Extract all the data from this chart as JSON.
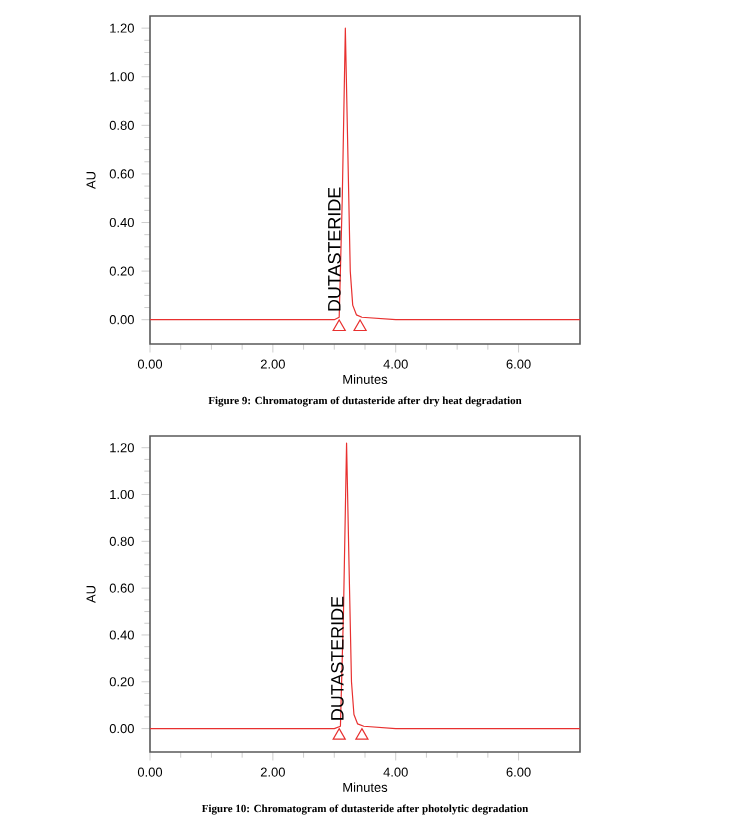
{
  "chart_data": [
    {
      "type": "line",
      "xlabel": "Minutes",
      "ylabel": "AU",
      "xlim": [
        0,
        7
      ],
      "ylim": [
        -0.1,
        1.25
      ],
      "xticks": [
        {
          "value": 0,
          "label": "0.00"
        },
        {
          "value": 2,
          "label": "2.00"
        },
        {
          "value": 4,
          "label": "4.00"
        },
        {
          "value": 6,
          "label": "6.00"
        }
      ],
      "yticks": [
        {
          "value": 0,
          "label": "0.00"
        },
        {
          "value": 0.2,
          "label": "0.20"
        },
        {
          "value": 0.4,
          "label": "0.40"
        },
        {
          "value": 0.6,
          "label": "0.60"
        },
        {
          "value": 0.8,
          "label": "0.80"
        },
        {
          "value": 1.0,
          "label": "1.00"
        },
        {
          "value": 1.2,
          "label": "1.20"
        }
      ],
      "grid": false,
      "series": [
        {
          "color": "#e8302f",
          "x": [
            0,
            1,
            2,
            3,
            3.08,
            3.13,
            3.18,
            3.22,
            3.26,
            3.3,
            3.36,
            3.45,
            4,
            5,
            6,
            7
          ],
          "values": [
            0,
            0,
            0,
            0,
            0.01,
            0.5,
            1.2,
            0.7,
            0.2,
            0.06,
            0.02,
            0.01,
            0,
            0,
            0,
            0
          ]
        },
        {
          "type": "scatter",
          "marker": "triangle",
          "color": "#e8302f",
          "x": [
            3.08,
            3.42
          ],
          "values": [
            -0.03,
            -0.03
          ]
        }
      ],
      "annotations": [
        {
          "text": "DUTASTERIDE",
          "x": 3.0,
          "y": 0.03
        },
        "Figure 9: Chromatogram of dutasteride after dry heat degradation"
      ]
    },
    {
      "type": "line",
      "xlabel": "Minutes",
      "ylabel": "AU",
      "xlim": [
        0,
        7
      ],
      "ylim": [
        -0.1,
        1.25
      ],
      "xticks": [
        {
          "value": 0,
          "label": "0.00"
        },
        {
          "value": 2,
          "label": "2.00"
        },
        {
          "value": 4,
          "label": "4.00"
        },
        {
          "value": 6,
          "label": "6.00"
        }
      ],
      "yticks": [
        {
          "value": 0,
          "label": "0.00"
        },
        {
          "value": 0.2,
          "label": "0.20"
        },
        {
          "value": 0.4,
          "label": "0.40"
        },
        {
          "value": 0.6,
          "label": "0.60"
        },
        {
          "value": 0.8,
          "label": "0.80"
        },
        {
          "value": 1.0,
          "label": "1.00"
        },
        {
          "value": 1.2,
          "label": "1.20"
        }
      ],
      "grid": false,
      "series": [
        {
          "color": "#e8302f",
          "x": [
            0,
            1,
            2,
            3,
            3.1,
            3.15,
            3.2,
            3.24,
            3.28,
            3.32,
            3.38,
            3.48,
            4,
            5,
            6,
            7
          ],
          "values": [
            0,
            0,
            0,
            0,
            0.01,
            0.5,
            1.22,
            0.7,
            0.2,
            0.06,
            0.02,
            0.01,
            0,
            0,
            0,
            0
          ]
        },
        {
          "type": "scatter",
          "marker": "triangle",
          "color": "#e8302f",
          "x": [
            3.08,
            3.45
          ],
          "values": [
            -0.03,
            -0.03
          ]
        }
      ],
      "annotations": [
        {
          "text": "DUTASTERIDE",
          "x": 3.05,
          "y": 0.03
        },
        "Figure 10: Chromatogram of dutasteride after photolytic degradation"
      ]
    }
  ]
}
